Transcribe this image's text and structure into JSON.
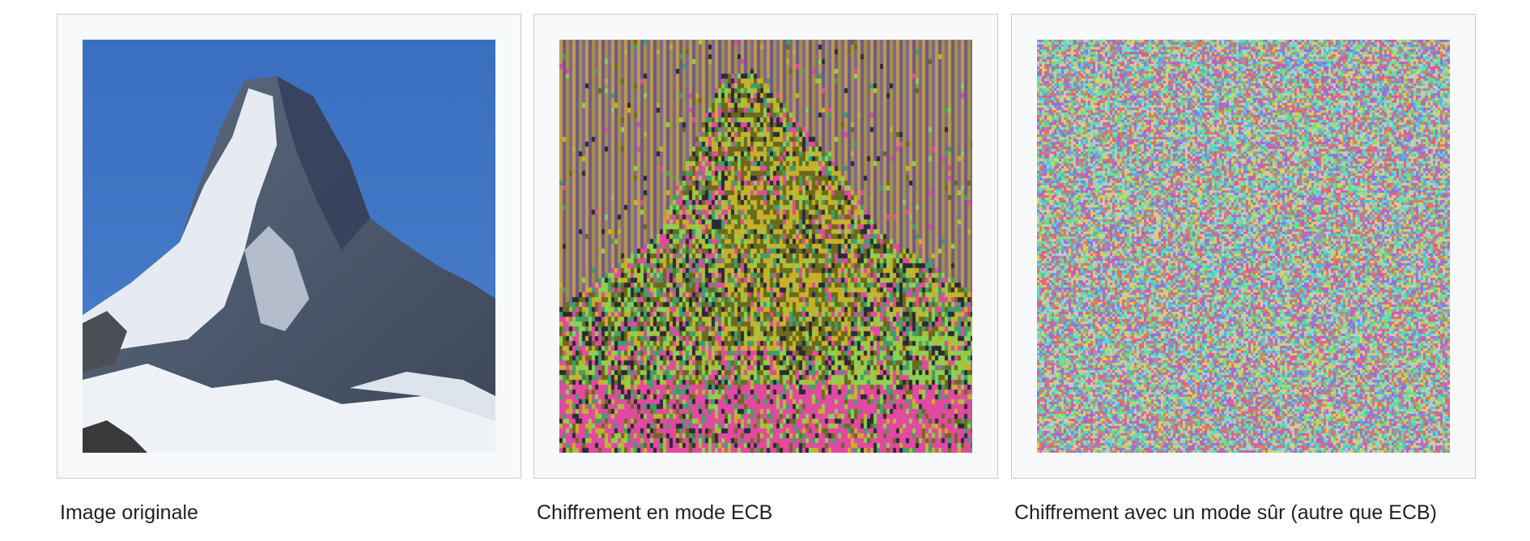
{
  "gallery": {
    "items": [
      {
        "caption": "Image originale",
        "image": "matterhorn-original-image",
        "colors": {
          "sky": "#3f74c2",
          "rock": "#52617a",
          "snow": "#e8edf3"
        }
      },
      {
        "caption": "Chiffrement en mode ECB",
        "image": "matterhorn-ecb-encrypted-image",
        "colors": {
          "sky_stripes": [
            "#c19a4a",
            "#6b5a8a",
            "#a89044",
            "#7c6890"
          ],
          "mountain": [
            "#6b6a1c",
            "#c8b12a",
            "#e14aa0",
            "#3f9f6a",
            "#8fd050",
            "#2a2a3a"
          ]
        }
      },
      {
        "caption": "Chiffrement avec un mode sûr (autre que ECB)",
        "image": "matterhorn-secure-encrypted-noise-image",
        "colors": {
          "noise": [
            "#e05a9a",
            "#5ab0e0",
            "#e0d05a",
            "#6ae07a",
            "#9a6ae0",
            "#e07a5a",
            "#5ae0c8",
            "#c8c8c8"
          ]
        }
      }
    ]
  }
}
